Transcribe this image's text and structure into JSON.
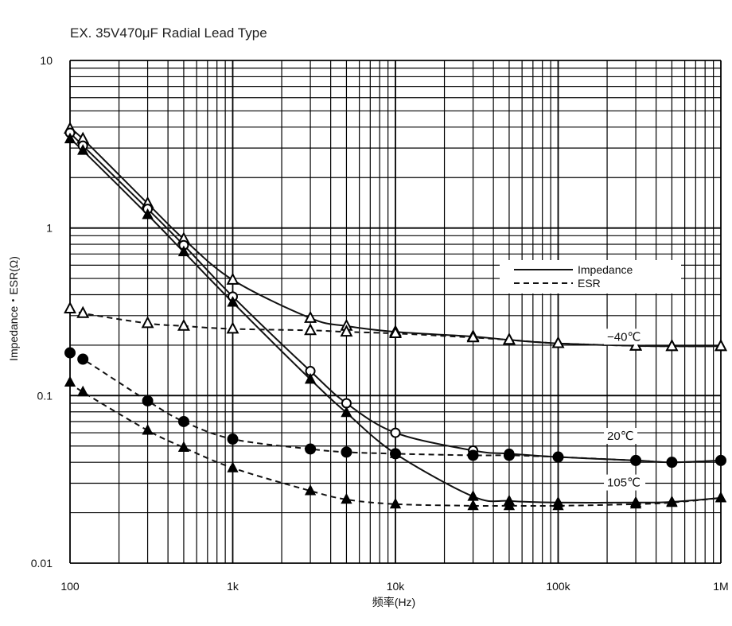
{
  "chart_data": {
    "type": "line",
    "title": "EX. 35V470μF Radial Lead Type",
    "xlabel": "频率(Hz)",
    "ylabel": "Impedance・ESR(Ω)",
    "x_scale": "log",
    "y_scale": "log",
    "xlim": [
      100,
      1000000
    ],
    "ylim": [
      0.01,
      10
    ],
    "grid": true,
    "x_ticks": [
      {
        "value": 100,
        "label": "100"
      },
      {
        "value": 1000,
        "label": "1k"
      },
      {
        "value": 10000,
        "label": "10k"
      },
      {
        "value": 100000,
        "label": "100k"
      },
      {
        "value": 1000000,
        "label": "1M"
      }
    ],
    "y_ticks": [
      {
        "value": 10,
        "label": "10"
      },
      {
        "value": 1,
        "label": "1"
      },
      {
        "value": 0.1,
        "label": "0.1"
      },
      {
        "value": 0.01,
        "label": "0.01"
      }
    ],
    "legend": {
      "position": "center-right",
      "entries": [
        {
          "label": "Impedance",
          "style": "solid"
        },
        {
          "label": "ESR",
          "style": "dashed"
        }
      ]
    },
    "annotations": [
      {
        "text": "−40℃",
        "x": 200000,
        "y": 0.215
      },
      {
        "text": "20℃",
        "x": 200000,
        "y": 0.055
      },
      {
        "text": "105℃",
        "x": 200000,
        "y": 0.029
      }
    ],
    "series": [
      {
        "temp": "-40",
        "kind": "Impedance",
        "style": "solid",
        "marker": "triangle-open",
        "x": [
          100,
          120,
          300,
          500,
          1000,
          3000,
          5000,
          10000,
          30000,
          50000,
          100000,
          300000,
          500000,
          1000000
        ],
        "y": [
          3.9,
          3.4,
          1.4,
          0.86,
          0.49,
          0.29,
          0.26,
          0.24,
          0.225,
          0.215,
          0.205,
          0.198,
          0.197,
          0.197
        ]
      },
      {
        "temp": "-40",
        "kind": "ESR",
        "style": "dashed",
        "marker": "triangle-open",
        "x": [
          100,
          120,
          300,
          500,
          1000,
          3000,
          5000,
          10000,
          30000,
          50000,
          100000,
          300000,
          500000,
          1000000
        ],
        "y": [
          0.33,
          0.31,
          0.27,
          0.26,
          0.25,
          0.245,
          0.24,
          0.235,
          0.222,
          0.215,
          0.205,
          0.198,
          0.197,
          0.197
        ]
      },
      {
        "temp": "20",
        "kind": "Impedance",
        "style": "solid",
        "marker": "circle-open",
        "x": [
          100,
          120,
          300,
          500,
          1000,
          3000,
          5000,
          10000,
          30000,
          50000,
          100000,
          300000,
          500000,
          1000000
        ],
        "y": [
          3.7,
          3.1,
          1.3,
          0.79,
          0.39,
          0.14,
          0.09,
          0.06,
          0.047,
          0.045,
          0.043,
          0.041,
          0.04,
          0.041
        ]
      },
      {
        "temp": "20",
        "kind": "ESR",
        "style": "dashed",
        "marker": "circle-filled",
        "x": [
          100,
          120,
          300,
          500,
          1000,
          3000,
          5000,
          10000,
          30000,
          50000,
          100000,
          300000,
          500000,
          1000000
        ],
        "y": [
          0.18,
          0.165,
          0.093,
          0.07,
          0.055,
          0.048,
          0.046,
          0.045,
          0.044,
          0.044,
          0.043,
          0.041,
          0.04,
          0.041
        ]
      },
      {
        "temp": "105",
        "kind": "Impedance",
        "style": "solid",
        "marker": "triangle-filled",
        "x": [
          100,
          120,
          300,
          500,
          1000,
          3000,
          5000,
          10000,
          30000,
          50000,
          100000,
          300000,
          500000,
          1000000
        ],
        "y": [
          3.4,
          2.9,
          1.2,
          0.72,
          0.36,
          0.125,
          0.079,
          0.045,
          0.025,
          0.0235,
          0.023,
          0.023,
          0.0232,
          0.0245
        ]
      },
      {
        "temp": "105",
        "kind": "ESR",
        "style": "dashed",
        "marker": "triangle-filled",
        "x": [
          100,
          120,
          300,
          500,
          1000,
          3000,
          5000,
          10000,
          30000,
          50000,
          100000,
          300000,
          500000,
          1000000
        ],
        "y": [
          0.12,
          0.105,
          0.062,
          0.049,
          0.037,
          0.027,
          0.024,
          0.0225,
          0.022,
          0.022,
          0.022,
          0.0225,
          0.023,
          0.0245
        ]
      }
    ]
  }
}
